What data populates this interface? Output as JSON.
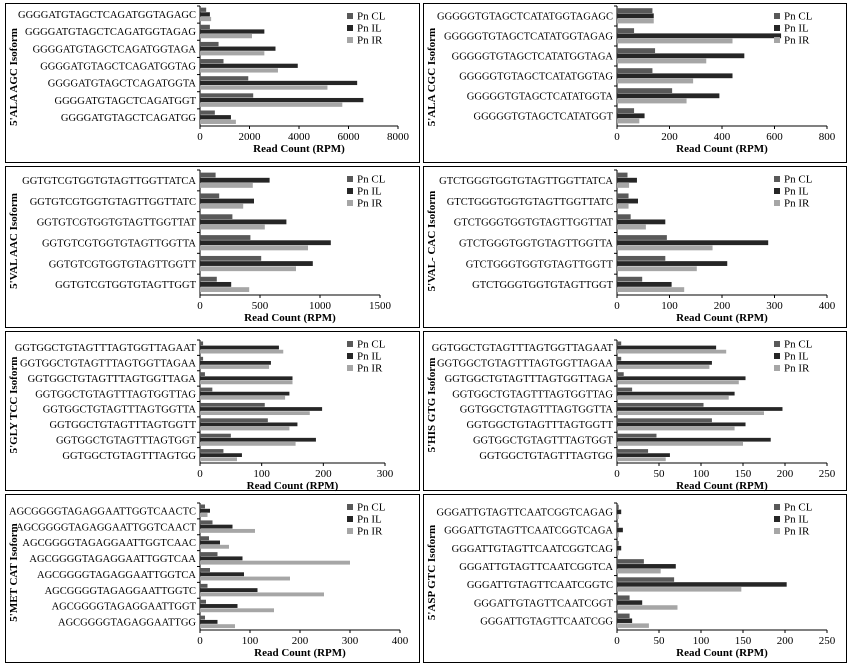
{
  "colors": {
    "Pn CL": "#595959",
    "Pn IL": "#262626",
    "Pn IR": "#a6a6a6"
  },
  "chart_data": [
    {
      "type": "bar",
      "orientation": "horizontal",
      "ylabel": "5'ALA AGC Isoform",
      "xlabel": "Read Count (RPM)",
      "xlim": [
        0,
        8000
      ],
      "xticks": [
        0,
        2000,
        4000,
        6000,
        8000
      ],
      "legend": "right",
      "categories": [
        "GGGGATGTAGCTCAGATGGTAGAGC",
        "GGGGATGTAGCTCAGATGGTAGAG",
        "GGGGATGTAGCTCAGATGGTAGA",
        "GGGGATGTAGCTCAGATGGTAG",
        "GGGGATGTAGCTCAGATGGTA",
        "GGGGATGTAGCTCAGATGGT",
        "GGGGATGTAGCTCAGATGG"
      ],
      "series": [
        {
          "name": "Pn CL",
          "values": [
            250,
            400,
            750,
            950,
            1950,
            2150,
            600
          ]
        },
        {
          "name": "Pn IL",
          "values": [
            400,
            2600,
            3050,
            3950,
            6350,
            6600,
            1250
          ]
        },
        {
          "name": "Pn IR",
          "values": [
            450,
            2100,
            2600,
            3150,
            5150,
            5750,
            1450
          ]
        }
      ]
    },
    {
      "type": "bar",
      "orientation": "horizontal",
      "ylabel": "5'ALA CGC Isoform",
      "xlabel": "Read Count (RPM)",
      "xlim": [
        0,
        800
      ],
      "xticks": [
        0,
        200,
        400,
        600,
        800
      ],
      "legend": "right",
      "categories": [
        "GGGGGTGTAGCTCATATGGTAGAGC",
        "GGGGGTGTAGCTCATATGGTAGAG",
        "GGGGGTGTAGCTCATATGGTAGA",
        "GGGGGTGTAGCTCATATGGTAG",
        "GGGGGTGTAGCTCATATGGTA",
        "GGGGGTGTAGCTCATATGGT"
      ],
      "series": [
        {
          "name": "Pn CL",
          "values": [
            135,
            65,
            145,
            135,
            210,
            65
          ]
        },
        {
          "name": "Pn IL",
          "values": [
            140,
            625,
            485,
            440,
            390,
            105
          ]
        },
        {
          "name": "Pn IR",
          "values": [
            140,
            440,
            340,
            290,
            265,
            85
          ]
        }
      ]
    },
    {
      "type": "bar",
      "orientation": "horizontal",
      "ylabel": "5'VAL AAC Isoform",
      "xlabel": "Read Count (RPM)",
      "xlim": [
        0,
        1500
      ],
      "xticks": [
        0,
        500,
        1000,
        1500
      ],
      "legend": "right",
      "categories": [
        "GGTGTCGTGGTGTAGTTGGTTATCA",
        "GGTGTCGTGGTGTAGTTGGTTATC",
        "GGTGTCGTGGTGTAGTTGGTTAT",
        "GGTGTCGTGGTGTAGTTGGTTA",
        "GGTGTCGTGGTGTAGTTGGTT",
        "GGTGTCGTGGTGTAGTTGGT"
      ],
      "series": [
        {
          "name": "Pn CL",
          "values": [
            130,
            160,
            270,
            420,
            510,
            140
          ]
        },
        {
          "name": "Pn IL",
          "values": [
            580,
            450,
            720,
            1090,
            940,
            260
          ]
        },
        {
          "name": "Pn IR",
          "values": [
            440,
            360,
            540,
            900,
            800,
            410
          ]
        }
      ]
    },
    {
      "type": "bar",
      "orientation": "horizontal",
      "ylabel": "5'VAL- CAC Isoform",
      "xlabel": "Read Count (RPM)",
      "xlim": [
        0,
        400
      ],
      "xticks": [
        0,
        100,
        200,
        300,
        400
      ],
      "legend": "right",
      "categories": [
        "GTCTGGGTGGTGTAGTTGGTTATCA",
        "GTCTGGGTGGTGTAGTTGGTTATC",
        "GTCTGGGTGGTGTAGTTGGTTAT",
        "GTCTGGGTGGTGTAGTTGGTTA",
        "GTCTGGGTGGTGTAGTTGGTT",
        "GTCTGGGTGGTGTAGTTGGT"
      ],
      "series": [
        {
          "name": "Pn CL",
          "values": [
            20,
            22,
            26,
            95,
            92,
            48
          ]
        },
        {
          "name": "Pn IL",
          "values": [
            38,
            40,
            92,
            288,
            210,
            104
          ]
        },
        {
          "name": "Pn IR",
          "values": [
            23,
            22,
            55,
            182,
            152,
            128
          ]
        }
      ]
    },
    {
      "type": "bar",
      "orientation": "horizontal",
      "ylabel": "5'GLY TCC Isoform",
      "xlabel": "Read Count (RPM)",
      "xlim": [
        0,
        300
      ],
      "xticks": [
        0,
        100,
        200,
        300
      ],
      "legend": "right",
      "categories": [
        "GGTGGCTGTAGTTTAGTGGTTAGAAT",
        "GGTGGCTGTAGTTTAGTGGTTAGAA",
        "GGTGGCTGTAGTTTAGTGGTTAGA",
        "GGTGGCTGTAGTTTAGTGGTTAG",
        "GGTGGCTGTAGTTTAGTGGTTA",
        "GGTGGCTGTAGTTTAGTGGTT",
        "GGTGGCTGTAGTTTAGTGGT",
        "GGTGGCTGTAGTTTAGTGG"
      ],
      "series": [
        {
          "name": "Pn CL",
          "values": [
            5,
            5,
            8,
            20,
            105,
            110,
            50,
            38
          ]
        },
        {
          "name": "Pn IL",
          "values": [
            128,
            115,
            150,
            145,
            198,
            158,
            188,
            68
          ]
        },
        {
          "name": "Pn IR",
          "values": [
            135,
            112,
            150,
            138,
            178,
            145,
            155,
            60
          ]
        }
      ]
    },
    {
      "type": "bar",
      "orientation": "horizontal",
      "ylabel": "5'HIS GTG Isoform",
      "xlabel": "Read Count (RPM)",
      "xlim": [
        0,
        250
      ],
      "xticks": [
        0,
        50,
        100,
        150,
        200,
        250
      ],
      "legend": "right",
      "categories": [
        "GGTGGCTGTAGTTTAGTGGTTAGAAT",
        "GGTGGCTGTAGTTTAGTGGTTAGAA",
        "GGTGGCTGTAGTTTAGTGGTTAGA",
        "GGTGGCTGTAGTTTAGTGGTTAG",
        "GGTGGCTGTAGTTTAGTGGTTA",
        "GGTGGCTGTAGTTTAGTGGTT",
        "GGTGGCTGTAGTTTAGTGGT",
        "GGTGGCTGTAGTTTAGTGG"
      ],
      "series": [
        {
          "name": "Pn CL",
          "values": [
            5,
            5,
            8,
            18,
            103,
            113,
            47,
            37
          ]
        },
        {
          "name": "Pn IL",
          "values": [
            118,
            113,
            153,
            140,
            197,
            153,
            183,
            63
          ]
        },
        {
          "name": "Pn IR",
          "values": [
            130,
            110,
            145,
            133,
            175,
            140,
            150,
            58
          ]
        }
      ]
    },
    {
      "type": "bar",
      "orientation": "horizontal",
      "ylabel": "5'MET CAT Isoform",
      "xlabel": "Read Count (RPM)",
      "xlim": [
        0,
        400
      ],
      "xticks": [
        0,
        100,
        200,
        300,
        400
      ],
      "legend": "right",
      "categories": [
        "AGCGGGGTAGAGGAATTGGTCAACTC",
        "AGCGGGGTAGAGGAATTGGTCAACT",
        "AGCGGGGTAGAGGAATTGGTCAAC",
        "AGCGGGGTAGAGGAATTGGTCAA",
        "AGCGGGGTAGAGGAATTGGTCA",
        "AGCGGGGTAGAGGAATTGGTC",
        "AGCGGGGTAGAGGAATTGGT",
        "AGCGGGGTAGAGGAATTGG"
      ],
      "series": [
        {
          "name": "Pn CL",
          "values": [
            10,
            25,
            18,
            35,
            20,
            15,
            12,
            10
          ]
        },
        {
          "name": "Pn IL",
          "values": [
            20,
            65,
            40,
            85,
            88,
            115,
            75,
            35
          ]
        },
        {
          "name": "Pn IR",
          "values": [
            15,
            110,
            58,
            300,
            180,
            248,
            148,
            70
          ]
        }
      ]
    },
    {
      "type": "bar",
      "orientation": "horizontal",
      "ylabel": "5'ASP GTC Isoform",
      "xlabel": "Read Count (RPM)",
      "xlim": [
        0,
        250
      ],
      "xticks": [
        0,
        50,
        100,
        150,
        200,
        250
      ],
      "legend": "right",
      "categories": [
        "GGGATTGTAGTTCAATCGGTCAGAG",
        "GGGATTGTAGTTCAATCGGTCAGA",
        "GGGATTGTAGTTCAATCGGTCAG",
        "GGGATTGTAGTTCAATCGGTCA",
        "GGGATTGTAGTTCAATCGGTC",
        "GGGATTGTAGTTCAATCGGT",
        "GGGATTGTAGTTCAATCGG"
      ],
      "series": [
        {
          "name": "Pn CL",
          "values": [
            2,
            2,
            2,
            32,
            68,
            15,
            15
          ]
        },
        {
          "name": "Pn IL",
          "values": [
            5,
            7,
            5,
            70,
            202,
            30,
            18
          ]
        },
        {
          "name": "Pn IR",
          "values": [
            2,
            2,
            2,
            52,
            148,
            72,
            38
          ]
        }
      ]
    }
  ]
}
